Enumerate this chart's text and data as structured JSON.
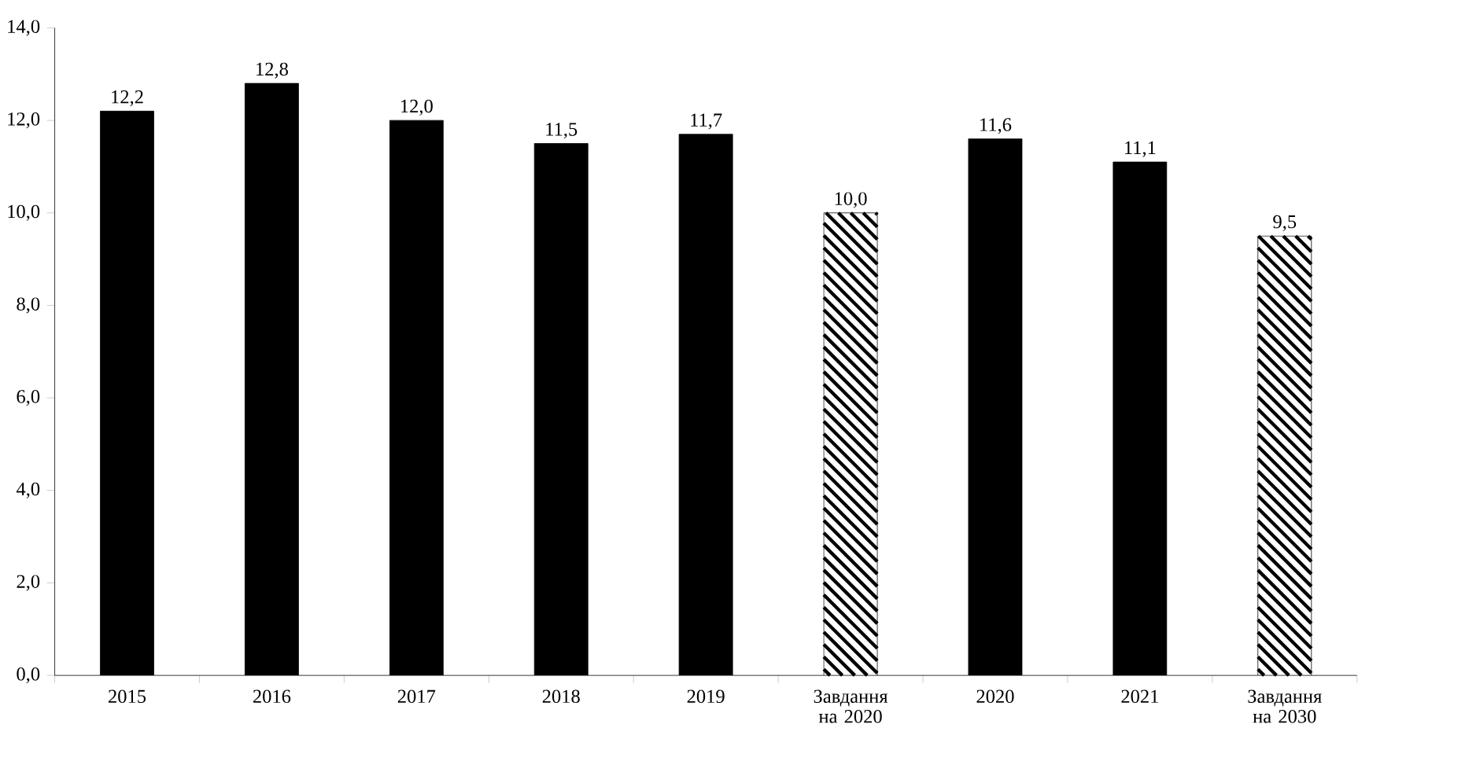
{
  "chart_data": {
    "type": "bar",
    "categories": [
      "2015",
      "2016",
      "2017",
      "2018",
      "2019",
      "Завдання на 2020",
      "2020",
      "2021",
      "Завдання на 2030"
    ],
    "values": [
      12.2,
      12.8,
      12.0,
      11.5,
      11.7,
      10.0,
      11.6,
      11.1,
      9.5
    ],
    "value_labels": [
      "12,2",
      "12,8",
      "12,0",
      "11,5",
      "11,7",
      "10,0",
      "11,6",
      "11,1",
      "9,5"
    ],
    "colors": [
      "#000000",
      "#000000",
      "#000000",
      "#000000",
      "#000000",
      "#ffffff",
      "#000000",
      "#000000",
      "#ffffff"
    ],
    "ylim": [
      0,
      14
    ],
    "yticks": [
      {
        "value": 0,
        "label": "0,0"
      },
      {
        "value": 2,
        "label": "2,0"
      },
      {
        "value": 4,
        "label": "4,0"
      },
      {
        "value": 6,
        "label": "6,0"
      },
      {
        "value": 8,
        "label": "8,0"
      },
      {
        "value": 10,
        "label": "10,0"
      },
      {
        "value": 12,
        "label": "12,0"
      },
      {
        "value": 14,
        "label": "14,0"
      }
    ],
    "grid": false
  }
}
